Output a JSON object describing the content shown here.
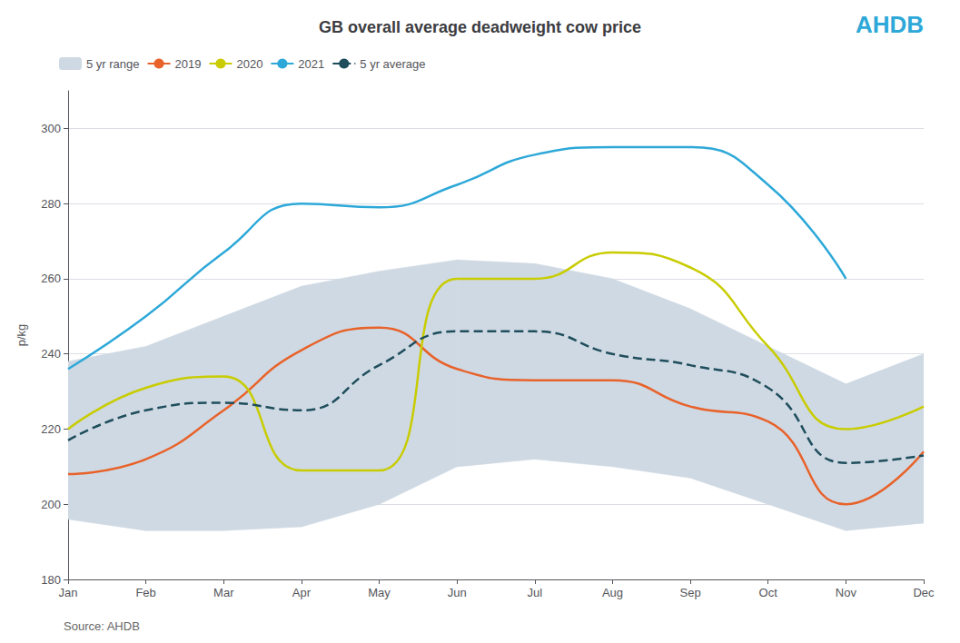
{
  "chart_data": {
    "type": "line",
    "title": "GB overall average deadweight cow price",
    "ylabel": "p/kg",
    "annotations": [
      {
        "text": "Source: AHDB"
      },
      {
        "text": "AHDB",
        "color": "#2da8d8"
      }
    ],
    "categories": [
      "Jan",
      "Feb",
      "Mar",
      "Apr",
      "May",
      "Jun",
      "Jul",
      "Aug",
      "Sep",
      "Oct",
      "Nov",
      "Dec"
    ],
    "series": [
      {
        "name": "5 yr range",
        "type": "range",
        "color": "#cfd9e3",
        "lower": [
          196,
          193,
          193,
          194,
          200,
          210,
          212,
          210,
          207,
          200,
          193,
          195
        ],
        "upper": [
          238,
          242,
          250,
          258,
          262,
          265,
          264,
          260,
          252,
          242,
          232,
          240
        ]
      },
      {
        "name": "2019",
        "type": "line",
        "color": "#e8622a",
        "line_style": "solid",
        "values": [
          208,
          212,
          225,
          241,
          247,
          236,
          233,
          233,
          226,
          222,
          200,
          214
        ]
      },
      {
        "name": "2020",
        "type": "line",
        "color": "#c8cc00",
        "line_style": "solid",
        "values": [
          220,
          231,
          234,
          209,
          209,
          260,
          260,
          267,
          263,
          242,
          220,
          226
        ]
      },
      {
        "name": "2021",
        "type": "line",
        "color": "#2da8d8",
        "line_style": "solid",
        "values": [
          236,
          250,
          267,
          280,
          279,
          285,
          293,
          295,
          295,
          285,
          260,
          null
        ]
      },
      {
        "name": "5 yr average",
        "type": "line",
        "color": "#1e4d5c",
        "line_style": "dashed",
        "values": [
          217,
          225,
          227,
          225,
          237,
          246,
          246,
          240,
          237,
          231,
          211,
          213
        ]
      }
    ],
    "ylim": [
      180,
      310
    ],
    "yticks": [
      180,
      200,
      220,
      240,
      260,
      280,
      300
    ],
    "grid": true,
    "legend": "top left"
  }
}
